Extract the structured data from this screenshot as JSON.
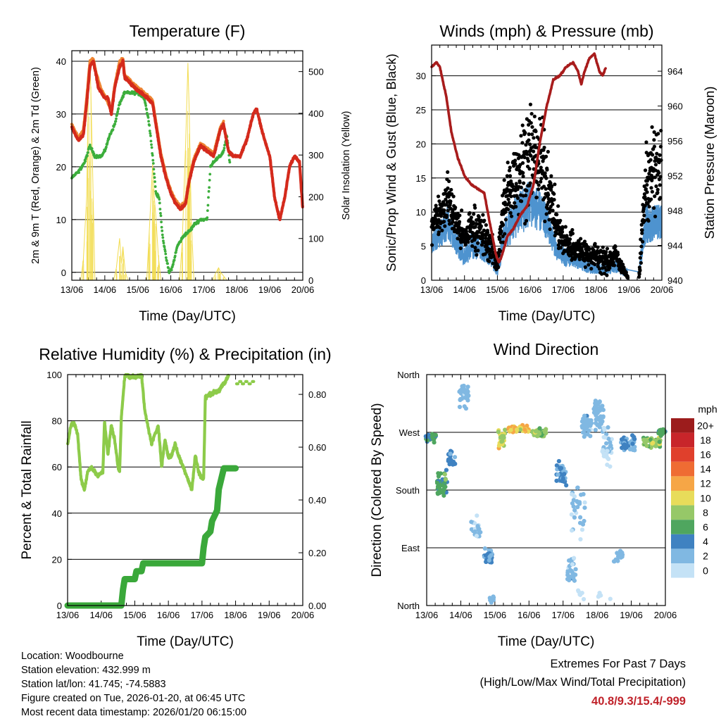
{
  "colors": {
    "temp2m": "#d42a1c",
    "temp9m": "#ee8432",
    "dewpoint": "#3cae3c",
    "solar": "#f2dc50",
    "wind": "#4e93cf",
    "gust": "#000000",
    "pressure": "#a81c1c",
    "humidity": "#8dcb4a",
    "precip": "#3aa83a",
    "extremes": "#c0222a"
  },
  "x_ticks": [
    "13/06",
    "14/06",
    "15/06",
    "16/06",
    "17/06",
    "18/06",
    "19/06",
    "20/06"
  ],
  "chart_data": [
    {
      "id": "temperature",
      "type": "line",
      "title": "Temperature (F)",
      "xlabel": "Time (Day/UTC)",
      "ylabel": "2m & 9m T (Red, Orange) & 2m Td (Green)",
      "ylabel_right": "Solar Insolation (Yellow)",
      "xlim_days": [
        13,
        20
      ],
      "ylim": [
        -1.5,
        42
      ],
      "yticks": [
        0,
        10,
        20,
        30,
        40
      ],
      "ylim_right": [
        0,
        550
      ],
      "yticks_right": [
        0,
        100,
        200,
        300,
        400,
        500
      ],
      "series": [
        {
          "name": "2m T",
          "color_key": "temp2m",
          "x": [
            13.0,
            13.2,
            13.35,
            13.45,
            13.55,
            13.65,
            13.75,
            13.8,
            13.9,
            14.0,
            14.1,
            14.2,
            14.3,
            14.45,
            14.55,
            14.6,
            14.75,
            14.9,
            15.1,
            15.3,
            15.45,
            15.55,
            15.7,
            15.85,
            16.0,
            16.15,
            16.3,
            16.45,
            16.55,
            16.7,
            16.9,
            17.1,
            17.3,
            17.5,
            17.6,
            17.75,
            17.9,
            18.1,
            18.3,
            18.5,
            18.6,
            18.8,
            19.0,
            19.15,
            19.3,
            19.45,
            19.6,
            19.75,
            19.9,
            20.0
          ],
          "y": [
            27.5,
            25,
            26,
            32,
            39,
            40,
            37,
            35,
            34,
            33,
            33,
            30,
            35,
            39,
            40,
            37,
            36,
            35,
            34,
            33,
            32,
            28,
            22,
            18,
            15,
            13,
            12,
            13,
            17,
            21,
            24,
            23,
            22,
            27,
            28,
            23,
            22,
            22,
            25,
            30,
            31,
            26,
            22,
            14,
            10,
            14,
            20,
            22,
            21,
            12
          ]
        },
        {
          "name": "9m T",
          "color_key": "temp9m",
          "x": [
            13.0,
            13.2,
            13.35,
            13.45,
            13.55,
            13.65,
            13.75,
            13.9,
            14.0,
            14.2,
            14.3,
            14.45,
            14.55,
            14.6,
            14.75,
            14.9,
            15.1,
            15.3,
            15.45,
            15.55,
            15.7,
            15.85,
            16.0,
            16.15,
            16.3,
            16.45,
            16.55,
            16.7,
            16.9,
            17.1,
            17.3,
            17.5,
            17.6
          ],
          "y": [
            28,
            25.5,
            27,
            33,
            40,
            40.5,
            37.5,
            34.5,
            33.5,
            30.5,
            35.5,
            40,
            40.5,
            37.5,
            36.5,
            35.5,
            34.5,
            33.5,
            32.5,
            28.5,
            22.5,
            18.5,
            15.5,
            13.5,
            12.5,
            13.5,
            17.5,
            21.5,
            24.5,
            23.5,
            22.5,
            27.5,
            28.5
          ]
        },
        {
          "name": "2m Td",
          "color_key": "dewpoint",
          "x": [
            13.0,
            13.2,
            13.4,
            13.55,
            13.7,
            13.9,
            14.0,
            14.15,
            14.3,
            14.45,
            14.6,
            14.8,
            15.0,
            15.2,
            15.35,
            15.45,
            15.55,
            15.65,
            15.75,
            15.85,
            15.95,
            16.05,
            16.2,
            16.4,
            16.6,
            16.7,
            16.9,
            17.1,
            17.2,
            17.3,
            17.5,
            17.6,
            17.7,
            17.8
          ],
          "y": [
            18,
            19,
            21,
            24,
            22,
            22,
            23,
            26,
            28,
            32,
            34,
            34,
            34,
            33,
            28,
            22,
            15,
            14,
            7,
            3,
            0,
            1,
            5,
            7,
            8,
            9,
            10,
            10,
            20,
            21,
            22,
            23,
            26,
            20
          ]
        },
        {
          "name": "Solar Insolation",
          "color_key": "solar",
          "axis": "right",
          "x": [
            13.27,
            13.35,
            13.45,
            13.5,
            13.56,
            13.62,
            13.7,
            14.27,
            14.35,
            14.45,
            14.5,
            14.55,
            14.62,
            14.7,
            15.27,
            15.35,
            15.45,
            15.5,
            15.55,
            15.62,
            15.7,
            16.27,
            16.35,
            16.45,
            16.52,
            16.56,
            16.62,
            16.7,
            17.27,
            17.35,
            17.45,
            17.5,
            17.6,
            17.7
          ],
          "y": [
            0,
            50,
            200,
            440,
            510,
            300,
            0,
            0,
            30,
            100,
            40,
            80,
            20,
            0,
            0,
            120,
            280,
            200,
            150,
            60,
            0,
            0,
            100,
            330,
            520,
            400,
            150,
            0,
            0,
            15,
            30,
            20,
            10,
            0
          ]
        }
      ]
    },
    {
      "id": "winds",
      "type": "scatter",
      "title": "Winds (mph) & Pressure (mb)",
      "xlabel": "Time (Day/UTC)",
      "ylabel": "Sonic/Prop Wind & Gust (Blue, Black)",
      "ylabel_right": "Station Pressure (Maroon)",
      "xlim_days": [
        13,
        20
      ],
      "ylim": [
        0,
        34.5
      ],
      "yticks": [
        0,
        5,
        10,
        15,
        20,
        25,
        30
      ],
      "ylim_right": [
        940,
        967
      ],
      "yticks_right": [
        940,
        944,
        948,
        952,
        956,
        960,
        964
      ],
      "wind_envelope": {
        "x": [
          13.0,
          13.3,
          13.5,
          13.7,
          14.0,
          14.2,
          14.5,
          14.8,
          15.0,
          15.2,
          15.5,
          15.8,
          16.0,
          16.3,
          16.5,
          16.8,
          17.0,
          17.3,
          17.5,
          17.8,
          18.0,
          18.3,
          18.6,
          19.0,
          19.3,
          19.5,
          19.8,
          20.0
        ],
        "base": [
          4,
          5,
          6,
          4,
          2,
          3,
          3,
          2,
          0.5,
          4,
          6,
          7,
          8,
          7,
          6,
          3,
          2,
          2,
          1.5,
          1,
          1,
          0.8,
          1,
          0.5,
          0.5,
          5,
          6,
          6
        ],
        "spread": [
          3,
          4,
          5,
          4,
          3,
          4,
          4,
          3,
          1.5,
          5,
          6,
          7,
          7,
          6,
          5,
          3,
          3,
          2,
          2,
          2,
          1.5,
          1.5,
          2,
          1,
          1,
          6,
          5,
          5
        ]
      },
      "gust_envelope": {
        "x": [
          13.0,
          13.3,
          13.5,
          13.7,
          14.0,
          14.2,
          14.5,
          14.8,
          15.0,
          15.2,
          15.5,
          15.8,
          16.0,
          16.3,
          16.5,
          16.8,
          17.0,
          17.3,
          17.5,
          17.8,
          18.0,
          18.3,
          18.6,
          19.0,
          19.3,
          19.5,
          19.8,
          20.0
        ],
        "base": [
          8,
          9,
          11,
          8,
          5,
          7,
          6,
          4,
          2,
          9,
          13,
          15,
          16,
          15,
          13,
          7,
          5,
          4,
          4,
          3,
          3,
          2,
          3,
          0,
          0,
          12,
          14,
          13
        ],
        "spread": [
          4,
          5,
          6,
          5,
          4,
          5,
          5,
          4,
          3,
          8,
          10,
          12,
          12,
          11,
          9,
          5,
          4,
          4,
          3,
          3,
          3,
          3,
          3,
          0,
          0,
          10,
          12,
          12
        ]
      },
      "series": [
        {
          "name": "Station Pressure",
          "color_key": "pressure",
          "axis": "right",
          "x": [
            13.0,
            13.15,
            13.25,
            13.45,
            13.6,
            13.8,
            14.0,
            14.2,
            14.4,
            14.6,
            14.8,
            14.95,
            15.05,
            15.15,
            15.3,
            15.5,
            15.7,
            15.9,
            16.1,
            16.3,
            16.5,
            16.7,
            16.9,
            17.1,
            17.3,
            17.45,
            17.55,
            17.65,
            17.8,
            17.95,
            18.1,
            18.2,
            18.3
          ],
          "y": [
            964.5,
            965,
            964.5,
            961,
            957,
            954,
            952,
            951,
            950.5,
            950,
            946,
            943,
            942,
            943,
            945,
            946,
            947.5,
            948.5,
            951,
            956,
            960,
            963,
            963.5,
            964.5,
            965,
            964,
            962.5,
            964,
            965.5,
            966,
            964,
            963.5,
            964.5
          ]
        }
      ]
    },
    {
      "id": "humidity",
      "type": "line",
      "title": "Relative Humidity (%) & Precipitation (in)",
      "xlabel": "Time (Day/UTC)",
      "ylabel": "Percent & Total Rainfall",
      "xlim_days": [
        13,
        20
      ],
      "ylim": [
        0,
        100
      ],
      "yticks": [
        0,
        20,
        40,
        60,
        80,
        100
      ],
      "ylim_right": [
        0,
        0.875
      ],
      "yticks_right": [
        "0.00",
        "0.20",
        "0.40",
        "0.60",
        "0.80"
      ],
      "series": [
        {
          "name": "Relative Humidity",
          "color_key": "humidity",
          "x": [
            13.0,
            13.1,
            13.2,
            13.3,
            13.4,
            13.5,
            13.6,
            13.7,
            13.9,
            14.05,
            14.1,
            14.2,
            14.3,
            14.4,
            14.5,
            14.55,
            14.6,
            14.7,
            14.75,
            14.85,
            15.0,
            15.2,
            15.3,
            15.5,
            15.7,
            15.8,
            15.9,
            16.0,
            16.1,
            16.2,
            16.3,
            16.5,
            16.7,
            16.8,
            16.9,
            17.0,
            17.05,
            17.1,
            17.3,
            17.5,
            17.6,
            17.7,
            17.8
          ],
          "y": [
            70,
            78,
            79,
            74,
            55,
            50,
            58,
            60,
            56,
            58,
            80,
            65,
            78,
            72,
            60,
            58,
            82,
            99,
            100,
            99,
            99,
            100,
            84,
            70,
            78,
            60,
            72,
            64,
            65,
            70,
            65,
            58,
            50,
            65,
            58,
            55,
            55,
            90,
            92,
            93,
            95,
            97,
            100
          ]
        },
        {
          "name": "Total Precipitation",
          "color_key": "precip",
          "axis": "right",
          "x": [
            13.0,
            14.6,
            14.65,
            14.7,
            15.0,
            15.05,
            15.2,
            15.25,
            17.0,
            17.05,
            17.1,
            17.25,
            17.3,
            17.45,
            17.5,
            17.65,
            18.0
          ],
          "y": [
            0,
            0,
            0.06,
            0.1,
            0.1,
            0.13,
            0.13,
            0.16,
            0.16,
            0.22,
            0.26,
            0.28,
            0.32,
            0.36,
            0.44,
            0.52,
            0.52
          ]
        }
      ]
    },
    {
      "id": "wind_direction",
      "type": "scatter",
      "title": "Wind Direction",
      "xlabel": "Time (Day/UTC)",
      "ylabel": "Direction (Colored By Speed)",
      "xlim_days": [
        13,
        20
      ],
      "ylim_degrees": [
        0,
        360
      ],
      "direction_labels": [
        {
          "deg": 0,
          "label": "North"
        },
        {
          "deg": 90,
          "label": "East"
        },
        {
          "deg": 180,
          "label": "South"
        },
        {
          "deg": 270,
          "label": "West"
        },
        {
          "deg": 360,
          "label": "North"
        }
      ],
      "colorbar": {
        "title": "mph",
        "labels": [
          "20+",
          "18",
          "16",
          "14",
          "12",
          "10",
          "8",
          "6",
          "4",
          "2",
          "0"
        ],
        "colors": [
          "#9c1c1c",
          "#c8252a",
          "#e0402c",
          "#ef6c33",
          "#f6a646",
          "#e8dc5a",
          "#96c868",
          "#4fa65f",
          "#3f82c1",
          "#80b8e2",
          "#c4e2f6"
        ]
      },
      "clusters": [
        {
          "x": 13.12,
          "dx": 0.15,
          "deg": 262,
          "ddeg": 10,
          "speed": 6,
          "dspeed": 2,
          "n": 30
        },
        {
          "x": 13.45,
          "dx": 0.15,
          "deg": 190,
          "ddeg": 25,
          "speed": 7,
          "dspeed": 3,
          "n": 45
        },
        {
          "x": 13.75,
          "dx": 0.12,
          "deg": 230,
          "ddeg": 20,
          "speed": 5,
          "dspeed": 2,
          "n": 20
        },
        {
          "x": 14.1,
          "dx": 0.15,
          "deg": 330,
          "ddeg": 25,
          "speed": 3,
          "dspeed": 1.5,
          "n": 45
        },
        {
          "x": 14.45,
          "dx": 0.15,
          "deg": 120,
          "ddeg": 25,
          "speed": 2,
          "dspeed": 1.5,
          "n": 25
        },
        {
          "x": 14.8,
          "dx": 0.12,
          "deg": 75,
          "ddeg": 20,
          "speed": 4,
          "dspeed": 2,
          "n": 30
        },
        {
          "x": 14.9,
          "dx": 0.08,
          "deg": 10,
          "ddeg": 10,
          "speed": 3,
          "dspeed": 1,
          "n": 8
        },
        {
          "x": 15.2,
          "dx": 0.1,
          "deg": 260,
          "ddeg": 20,
          "speed": 10,
          "dspeed": 3,
          "n": 25
        },
        {
          "x": 15.7,
          "dx": 0.3,
          "deg": 275,
          "ddeg": 8,
          "speed": 12,
          "dspeed": 3,
          "n": 80
        },
        {
          "x": 16.3,
          "dx": 0.2,
          "deg": 270,
          "ddeg": 10,
          "speed": 9,
          "dspeed": 3,
          "n": 40
        },
        {
          "x": 16.95,
          "dx": 0.15,
          "deg": 205,
          "ddeg": 25,
          "speed": 4,
          "dspeed": 2,
          "n": 40
        },
        {
          "x": 17.25,
          "dx": 0.12,
          "deg": 55,
          "ddeg": 30,
          "speed": 3,
          "dspeed": 1.5,
          "n": 35
        },
        {
          "x": 17.45,
          "dx": 0.2,
          "deg": 150,
          "ddeg": 60,
          "speed": 2,
          "dspeed": 1,
          "n": 30
        },
        {
          "x": 17.7,
          "dx": 0.15,
          "deg": 280,
          "ddeg": 25,
          "speed": 3,
          "dspeed": 1.5,
          "n": 35
        },
        {
          "x": 18.05,
          "dx": 0.15,
          "deg": 300,
          "ddeg": 40,
          "speed": 3,
          "dspeed": 1.5,
          "n": 40
        },
        {
          "x": 18.3,
          "dx": 0.15,
          "deg": 250,
          "ddeg": 50,
          "speed": 2,
          "dspeed": 1,
          "n": 35
        },
        {
          "x": 18.6,
          "dx": 0.15,
          "deg": 80,
          "ddeg": 25,
          "speed": 3,
          "dspeed": 1,
          "n": 15
        },
        {
          "x": 18.9,
          "dx": 0.2,
          "deg": 250,
          "ddeg": 20,
          "speed": 4,
          "dspeed": 2,
          "n": 35
        },
        {
          "x": 19.6,
          "dx": 0.25,
          "deg": 255,
          "ddeg": 12,
          "speed": 9,
          "dspeed": 3,
          "n": 45
        },
        {
          "x": 19.9,
          "dx": 0.1,
          "deg": 270,
          "ddeg": 10,
          "speed": 7,
          "dspeed": 2,
          "n": 15
        },
        {
          "x": 18.0,
          "dx": 0.6,
          "deg": 15,
          "ddeg": 15,
          "speed": 1,
          "dspeed": 1,
          "n": 12
        }
      ]
    }
  ],
  "info": {
    "location": "Location: Woodbourne",
    "elevation": "Station elevation: 432.999 m",
    "latlon": "Station lat/lon: 41.745; -74.5883",
    "created": "Figure created on Tue, 2026-01-20, at 06:45 UTC",
    "recent": "Most recent data timestamp: 2026/01/20 06:15:00"
  },
  "extremes": {
    "title": "Extremes For Past 7 Days",
    "subtitle": "(High/Low/Max Wind/Total Precipitation)",
    "values": "40.8/9.3/15.4/-999"
  }
}
